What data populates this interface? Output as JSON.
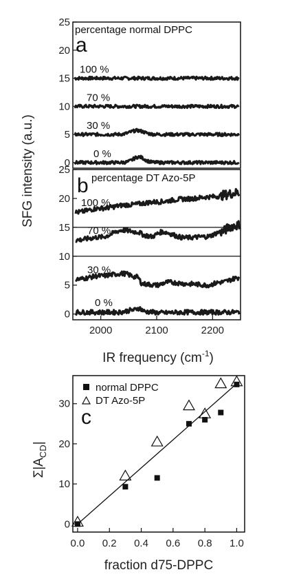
{
  "chart_data": [
    {
      "panel": "a",
      "type": "line",
      "annotation": "percentage normal DPPC",
      "ylim": [
        -1,
        25
      ],
      "yticks": [
        0,
        5,
        10,
        15,
        20,
        25
      ],
      "xlim": [
        1950,
        2250
      ],
      "series": [
        {
          "name": "100 %",
          "offset": 15,
          "features": []
        },
        {
          "name": "70 %",
          "offset": 10,
          "features": []
        },
        {
          "name": "30 %",
          "offset": 5,
          "features": [
            [
              2065,
              0.7,
              12
            ]
          ]
        },
        {
          "name": "0 %",
          "offset": 0,
          "features": [
            [
              2068,
              1.0,
              10
            ]
          ]
        }
      ]
    },
    {
      "panel": "b",
      "type": "line",
      "annotation": "percentage DT Azo-5P",
      "ylim": [
        -1,
        25
      ],
      "yticks": [
        0,
        5,
        10,
        15,
        20,
        25
      ],
      "xlim": [
        1950,
        2250
      ],
      "xticks": [
        2000,
        2100,
        2200
      ],
      "xlabel": "IR frequency (cm-1)",
      "series": [
        {
          "name": "100 %",
          "points": [
            [
              1955,
              17.6
            ],
            [
              2000,
              18.3
            ],
            [
              2050,
              18.9
            ],
            [
              2100,
              19.4
            ],
            [
              2150,
              19.9
            ],
            [
              2200,
              20.3
            ],
            [
              2248,
              21.0
            ]
          ]
        },
        {
          "name": "70 %",
          "points": [
            [
              1955,
              12.8
            ],
            [
              2000,
              13.3
            ],
            [
              2040,
              14.5
            ],
            [
              2065,
              14.2
            ],
            [
              2080,
              13.6
            ],
            [
              2090,
              13.4
            ],
            [
              2110,
              14.2
            ],
            [
              2150,
              13.2
            ],
            [
              2190,
              13.4
            ],
            [
              2215,
              14.2
            ],
            [
              2235,
              15.2
            ],
            [
              2248,
              15.4
            ]
          ]
        },
        {
          "name": "30 %",
          "points": [
            [
              1955,
              6.0
            ],
            [
              2000,
              6.6
            ],
            [
              2040,
              7.0
            ],
            [
              2065,
              6.4
            ],
            [
              2075,
              5.2
            ],
            [
              2100,
              5.0
            ],
            [
              2120,
              5.5
            ],
            [
              2160,
              5.2
            ],
            [
              2190,
              5.0
            ],
            [
              2215,
              5.5
            ],
            [
              2248,
              6.3
            ]
          ]
        },
        {
          "name": "0 %",
          "points": [
            [
              1955,
              0.3
            ],
            [
              2030,
              0.3
            ],
            [
              2060,
              0.7
            ],
            [
              2068,
              1.0
            ],
            [
              2080,
              0.4
            ],
            [
              2110,
              0.2
            ],
            [
              2150,
              0.3
            ],
            [
              2248,
              0.3
            ]
          ]
        }
      ],
      "separator_lines": [
        10,
        15
      ]
    },
    {
      "panel": "c",
      "type": "scatter",
      "xlabel": "fraction d75-DPPC",
      "ylabel": "Σ|A",
      "ylabel_sub": "CD",
      "ylabel_end": "|",
      "xlim": [
        -0.03,
        1.05
      ],
      "ylim": [
        -2,
        37
      ],
      "xticks": [
        0.0,
        0.2,
        0.4,
        0.6,
        0.8,
        1.0
      ],
      "yticks": [
        0,
        10,
        20,
        30
      ],
      "legend_position": "top-left",
      "series": [
        {
          "name": "normal DPPC",
          "marker": "square",
          "x": [
            0.0,
            0.3,
            0.5,
            0.7,
            0.8,
            0.9,
            1.0
          ],
          "y": [
            0.0,
            9.3,
            11.5,
            25.0,
            26.0,
            27.8,
            34.8
          ]
        },
        {
          "name": "DT Azo-5P",
          "marker": "triangle",
          "x": [
            0.0,
            0.3,
            0.5,
            0.7,
            0.8,
            0.9,
            1.0
          ],
          "y": [
            0.5,
            12.0,
            20.5,
            29.5,
            27.5,
            35.0,
            35.5
          ]
        }
      ],
      "fit_line": {
        "x": [
          0.0,
          1.0
        ],
        "y": [
          0.0,
          35.0
        ]
      }
    }
  ],
  "labels": {
    "panel_a": "a",
    "panel_b": "b",
    "panel_c": "c",
    "shared_ylabel": "SFG intensity (a.u.)",
    "top_xlabel_main": "IR frequency (cm",
    "top_xlabel_sup": "-1",
    "top_xlabel_end": ")"
  }
}
